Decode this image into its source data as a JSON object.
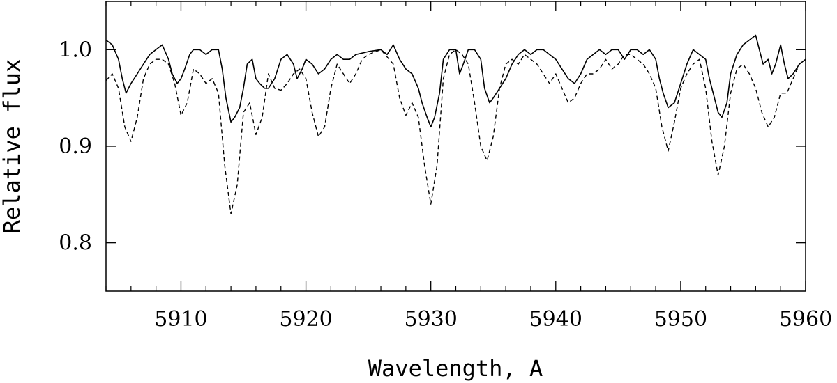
{
  "chart_data": {
    "type": "line",
    "xlabel": "Wavelength, A",
    "ylabel": "Relative flux",
    "xlim": [
      5904,
      5960
    ],
    "ylim": [
      0.75,
      1.05
    ],
    "x_major_ticks": [
      5910,
      5920,
      5930,
      5940,
      5950,
      5960
    ],
    "x_tick_labels": [
      "5910",
      "5920",
      "5930",
      "5940",
      "5950",
      "5960"
    ],
    "x_minor_step": 2,
    "y_major_ticks": [
      0.8,
      0.9,
      1.0
    ],
    "y_tick_labels": [
      "0.8",
      "0.9",
      "1.0"
    ],
    "grid": false,
    "legend": "none",
    "series": [
      {
        "style": "solid",
        "color": "#000000",
        "x": [
          5904,
          5904.5,
          5905,
          5905.3,
          5905.6,
          5906,
          5906.5,
          5907,
          5907.5,
          5908,
          5908.5,
          5909,
          5909.3,
          5909.7,
          5910,
          5910.3,
          5910.7,
          5911,
          5911.5,
          5912,
          5912.5,
          5913,
          5913.3,
          5913.6,
          5914,
          5914.3,
          5914.7,
          5915,
          5915.3,
          5915.7,
          5916,
          5916.3,
          5916.7,
          5917,
          5917.5,
          5918,
          5918.5,
          5919,
          5919.3,
          5919.7,
          5920,
          5920.5,
          5921,
          5921.5,
          5922,
          5922.5,
          5923,
          5923.5,
          5924,
          5925,
          5926,
          5926.5,
          5927,
          5927.5,
          5928,
          5928.5,
          5929,
          5929.3,
          5929.7,
          5930,
          5930.3,
          5930.7,
          5931,
          5931.5,
          5932,
          5932.3,
          5932.6,
          5933,
          5933.5,
          5934,
          5934.3,
          5934.7,
          5935,
          5935.5,
          5936,
          5936.5,
          5937,
          5937.5,
          5938,
          5938.5,
          5939,
          5939.5,
          5940,
          5940.5,
          5941,
          5941.5,
          5942,
          5942.5,
          5943,
          5943.5,
          5944,
          5944.5,
          5945,
          5945.5,
          5946,
          5946.5,
          5947,
          5947.5,
          5948,
          5948.3,
          5948.6,
          5949,
          5949.5,
          5950,
          5950.5,
          5951,
          5951.5,
          5952,
          5952.3,
          5952.7,
          5953,
          5953.3,
          5953.7,
          5954,
          5954.5,
          5955,
          5955.5,
          5956,
          5956.3,
          5956.6,
          5957,
          5957.3,
          5957.6,
          5958,
          5958.3,
          5958.6,
          5959,
          5959.5,
          5960
        ],
        "y": [
          1.01,
          1.005,
          0.99,
          0.97,
          0.955,
          0.965,
          0.975,
          0.985,
          0.995,
          1.0,
          1.005,
          0.99,
          0.975,
          0.965,
          0.97,
          0.98,
          0.995,
          1.0,
          1.0,
          0.995,
          1.0,
          1.0,
          0.98,
          0.95,
          0.925,
          0.93,
          0.94,
          0.96,
          0.985,
          0.99,
          0.97,
          0.965,
          0.96,
          0.96,
          0.97,
          0.99,
          0.995,
          0.985,
          0.97,
          0.98,
          0.99,
          0.985,
          0.975,
          0.98,
          0.99,
          0.995,
          0.99,
          0.99,
          0.995,
          0.998,
          1.0,
          0.995,
          1.005,
          0.99,
          0.98,
          0.975,
          0.96,
          0.945,
          0.93,
          0.92,
          0.93,
          0.955,
          0.99,
          1.0,
          1.0,
          0.975,
          0.985,
          1.0,
          1.0,
          0.99,
          0.96,
          0.945,
          0.95,
          0.96,
          0.97,
          0.985,
          0.995,
          1.0,
          0.995,
          1.0,
          1.0,
          0.995,
          0.99,
          0.98,
          0.97,
          0.965,
          0.975,
          0.99,
          0.995,
          1.0,
          0.995,
          1.0,
          1.0,
          0.99,
          1.0,
          1.0,
          0.995,
          1.0,
          0.99,
          0.97,
          0.955,
          0.94,
          0.945,
          0.965,
          0.985,
          1.0,
          0.995,
          0.99,
          0.97,
          0.95,
          0.935,
          0.93,
          0.945,
          0.975,
          0.995,
          1.005,
          1.01,
          1.015,
          1.0,
          0.985,
          0.99,
          0.975,
          0.985,
          1.005,
          0.985,
          0.97,
          0.975,
          0.985,
          0.99
        ]
      },
      {
        "style": "dashed",
        "color": "#000000",
        "x": [
          5904,
          5904.5,
          5905,
          5905.5,
          5906,
          5906.5,
          5907,
          5907.5,
          5908,
          5908.5,
          5909,
          5909.5,
          5910,
          5910.5,
          5911,
          5911.5,
          5912,
          5912.5,
          5913,
          5913.5,
          5914,
          5914.5,
          5915,
          5915.5,
          5916,
          5916.5,
          5917,
          5917.5,
          5918,
          5918.5,
          5919,
          5919.5,
          5920,
          5920.5,
          5921,
          5921.5,
          5922,
          5922.5,
          5923,
          5923.5,
          5924,
          5924.5,
          5925,
          5926,
          5927,
          5927.5,
          5928,
          5928.5,
          5929,
          5929.5,
          5930,
          5930.5,
          5931,
          5931.5,
          5932,
          5932.5,
          5933,
          5933.5,
          5934,
          5934.5,
          5935,
          5935.5,
          5936,
          5936.5,
          5937,
          5937.5,
          5938,
          5938.5,
          5939,
          5939.5,
          5940,
          5940.5,
          5941,
          5941.5,
          5942,
          5942.5,
          5943,
          5943.5,
          5944,
          5944.5,
          5945,
          5945.5,
          5946,
          5946.5,
          5947,
          5947.5,
          5948,
          5948.5,
          5949,
          5949.5,
          5950,
          5950.5,
          5951,
          5951.5,
          5952,
          5952.5,
          5953,
          5953.5,
          5954,
          5954.5,
          5955,
          5955.5,
          5956,
          5956.5,
          5957,
          5957.5,
          5958,
          5958.5,
          5959,
          5959.5,
          5960
        ],
        "y": [
          0.968,
          0.975,
          0.96,
          0.92,
          0.905,
          0.93,
          0.97,
          0.985,
          0.99,
          0.99,
          0.985,
          0.965,
          0.932,
          0.945,
          0.98,
          0.975,
          0.965,
          0.97,
          0.955,
          0.88,
          0.83,
          0.86,
          0.935,
          0.945,
          0.912,
          0.93,
          0.975,
          0.96,
          0.958,
          0.965,
          0.975,
          0.98,
          0.97,
          0.935,
          0.91,
          0.92,
          0.96,
          0.985,
          0.975,
          0.965,
          0.975,
          0.99,
          0.995,
          1.0,
          0.985,
          0.95,
          0.932,
          0.945,
          0.93,
          0.88,
          0.84,
          0.88,
          0.97,
          0.995,
          1.0,
          0.995,
          0.985,
          0.945,
          0.9,
          0.885,
          0.91,
          0.96,
          0.985,
          0.99,
          0.985,
          0.995,
          0.99,
          0.985,
          0.975,
          0.965,
          0.975,
          0.96,
          0.945,
          0.95,
          0.965,
          0.975,
          0.975,
          0.98,
          0.99,
          0.98,
          0.985,
          0.995,
          0.995,
          0.99,
          0.985,
          0.975,
          0.96,
          0.92,
          0.895,
          0.925,
          0.96,
          0.975,
          0.985,
          0.99,
          0.96,
          0.905,
          0.87,
          0.9,
          0.955,
          0.98,
          0.985,
          0.975,
          0.96,
          0.935,
          0.92,
          0.93,
          0.955,
          0.955,
          0.97,
          0.985,
          0.99
        ]
      }
    ]
  }
}
